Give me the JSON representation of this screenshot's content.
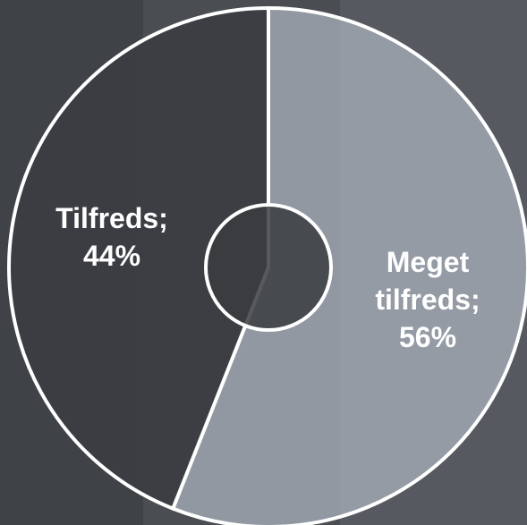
{
  "chart_data": {
    "type": "donut",
    "values": [
      56,
      44
    ],
    "value_labels": [
      "Meget tilfreds; 56%",
      "Tilfreds; 44%"
    ],
    "colors": [
      "#aab2bc",
      "#3b3d42"
    ]
  }
}
